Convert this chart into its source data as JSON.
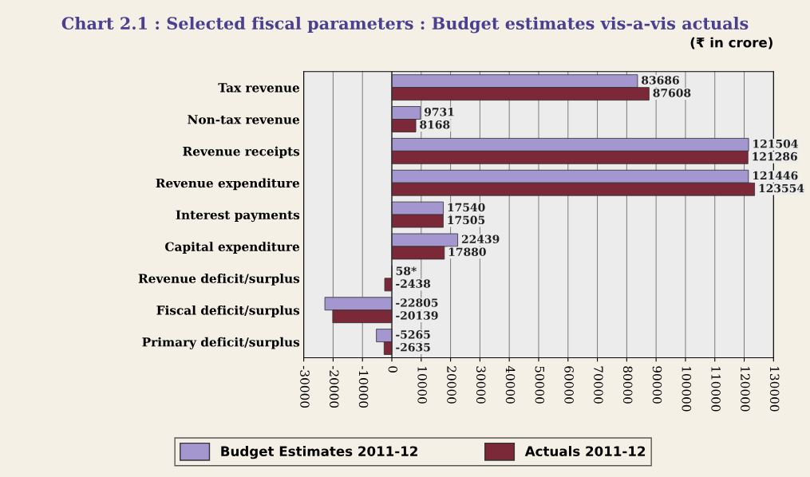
{
  "chart_data": {
    "type": "bar",
    "orientation": "horizontal",
    "title": "Chart 2.1 : Selected fiscal parameters : Budget estimates vis-a-vis actuals",
    "subtitle": "(₹ in crore)",
    "categories": [
      "Tax revenue",
      "Non-tax revenue",
      "Revenue receipts",
      "Revenue expenditure",
      "Interest payments",
      "Capital expenditure",
      "Revenue deficit/surplus",
      "Fiscal deficit/surplus",
      "Primary deficit/surplus"
    ],
    "series": [
      {
        "name": "Budget Estimates 2011-12",
        "color": "#a497d0",
        "values": [
          83686,
          9731,
          121504,
          121446,
          17540,
          22439,
          58,
          -22805,
          -5265
        ],
        "value_labels": [
          "83686",
          "9731",
          "121504",
          "121446",
          "17540",
          "22439",
          "58*",
          "-22805",
          "-5265"
        ]
      },
      {
        "name": "Actuals 2011-12",
        "color": "#7b2838",
        "values": [
          87608,
          8168,
          121286,
          123554,
          17505,
          17880,
          -2438,
          -20139,
          -2635
        ],
        "value_labels": [
          "87608",
          "8168",
          "121286",
          "123554",
          "17505",
          "17880",
          "-2438",
          "-20139",
          "-2635"
        ]
      }
    ],
    "xlim": [
      -30000,
      130000
    ],
    "xticks": [
      -30000,
      -20000,
      -10000,
      0,
      10000,
      20000,
      30000,
      40000,
      50000,
      60000,
      70000,
      80000,
      90000,
      100000,
      110000,
      120000,
      130000
    ],
    "grid": "x",
    "legend": "bottom"
  }
}
